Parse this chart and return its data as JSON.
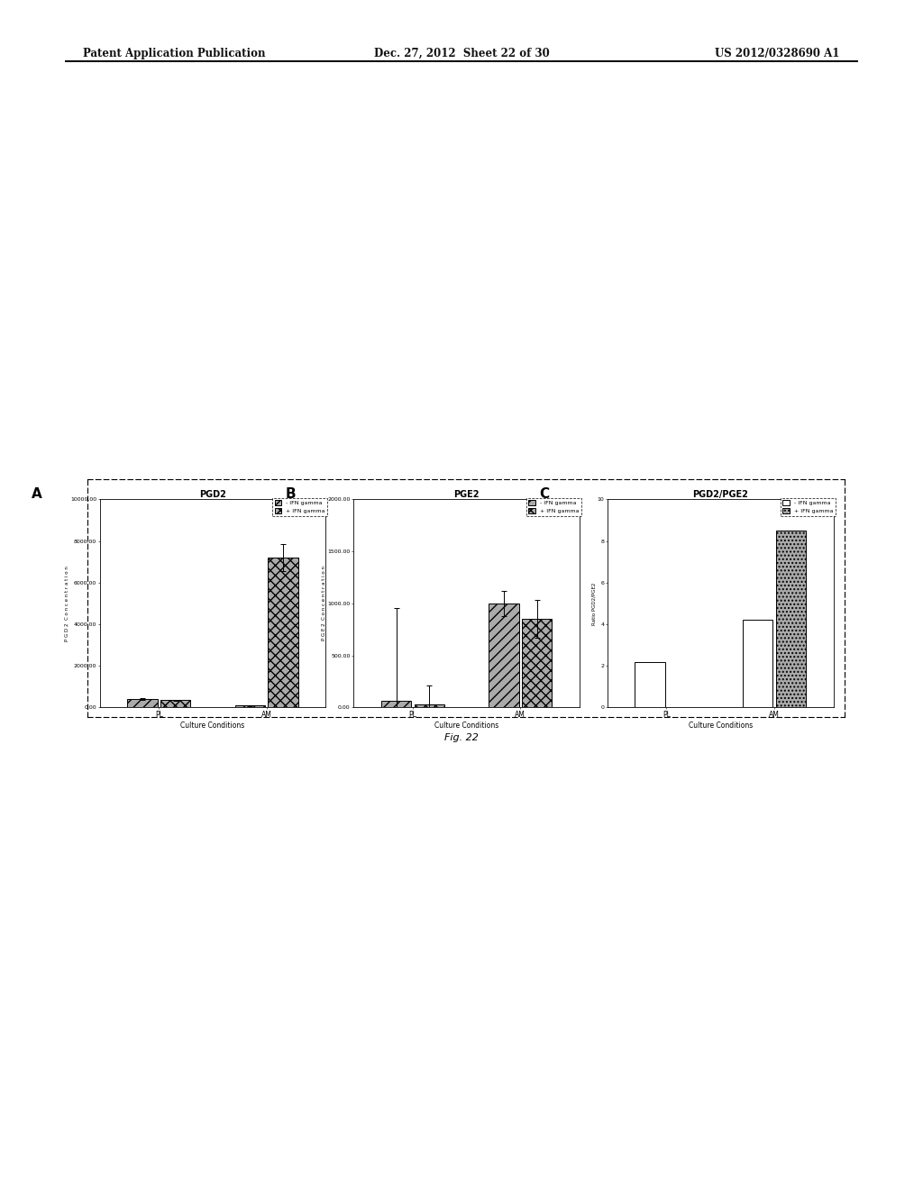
{
  "panel_A": {
    "title": "PGD2",
    "label": "A",
    "ylabel": "P G D 2  C o n c e n t r a t i o n",
    "ylim": [
      0,
      10000
    ],
    "yticks": [
      0,
      2000,
      4000,
      6000,
      8000,
      10000
    ],
    "ytick_labels": [
      "0.00",
      "2000.00",
      "4000.00",
      "6000.00",
      "8000.00",
      "10000.00"
    ],
    "categories": [
      "PL",
      "AM"
    ],
    "series": [
      {
        "label": "- IFN gamma",
        "values": [
          420,
          90
        ],
        "errors": [
          35,
          15
        ],
        "hatch": "///",
        "color": "#aaaaaa"
      },
      {
        "label": "+ IFN gamma",
        "values": [
          350,
          7200
        ],
        "errors": [
          30,
          650
        ],
        "hatch": "xxx",
        "color": "#aaaaaa"
      }
    ]
  },
  "panel_B": {
    "title": "PGE2",
    "label": "B",
    "ylabel": "P G E 2  C o n c e n t r a t i o n",
    "ylim": [
      0,
      2000
    ],
    "yticks": [
      0,
      500,
      1000,
      1500,
      2000
    ],
    "ytick_labels": [
      "0.00",
      "500.00",
      "1000.00",
      "1500.00",
      "2000.00"
    ],
    "categories": [
      "PL",
      "AM"
    ],
    "series": [
      {
        "label": "- IFN gamma",
        "values": [
          60,
          1000
        ],
        "errors": [
          900,
          120
        ],
        "hatch": "///",
        "color": "#aaaaaa"
      },
      {
        "label": "+ IFN gamma",
        "values": [
          30,
          850
        ],
        "errors": [
          180,
          180
        ],
        "hatch": "xxx",
        "color": "#aaaaaa"
      }
    ]
  },
  "panel_C": {
    "title": "PGD2/PGE2",
    "label": "C",
    "ylabel": "Ratio PGD2/PGE2",
    "ylim": [
      0,
      10
    ],
    "yticks": [
      0,
      2,
      4,
      6,
      8,
      10
    ],
    "ytick_labels": [
      "0",
      "2",
      "4",
      "6",
      "8",
      "10"
    ],
    "categories": [
      "PL",
      "AM"
    ],
    "series": [
      {
        "label": "- IFN gamma",
        "values": [
          2.2,
          4.2
        ],
        "errors": [
          0.0,
          0.0
        ],
        "hatch": "",
        "color": "#ffffff"
      },
      {
        "label": "+ IFN gamma",
        "values": [
          0.0,
          8.5
        ],
        "errors": [
          0.0,
          0.0
        ],
        "hatch": "....",
        "color": "#aaaaaa"
      }
    ]
  },
  "xlabel": "Culture Conditions",
  "fig_label": "Fig. 22",
  "bar_width": 0.28,
  "edge_color": "#000000",
  "header_left": "Patent Application Publication",
  "header_center": "Dec. 27, 2012  Sheet 22 of 30",
  "header_right": "US 2012/0328690 A1",
  "page_bg": "#ffffff"
}
